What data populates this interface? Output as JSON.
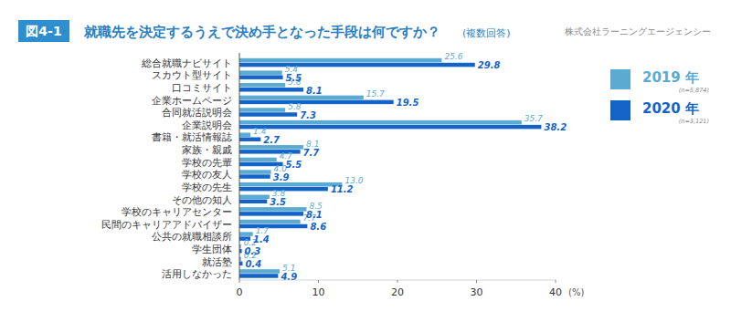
{
  "chart_data": {
    "type": "bar",
    "orientation": "horizontal",
    "figure_label": "図4-1",
    "title": "就職先を決定するうえで決め手となった手段は何ですか？",
    "subtitle": "(複数回答)",
    "source": "株式会社ラーニングエージェンシー",
    "x_label": "(%)",
    "categories": [
      "総合就職ナビサイト",
      "スカウト型サイト",
      "口コミサイト",
      "企業ホームページ",
      "合同就活説明会",
      "企業説明会",
      "書籍・就活情報誌",
      "家族・親戚",
      "学校の先輩",
      "学校の友人",
      "学校の先生",
      "その他の知人",
      "学校のキャリアセンター",
      "民間のキャリアアドバイザー",
      "公共の就職相談所",
      "学生団体",
      "就活塾",
      "活用しなかった"
    ],
    "series": [
      {
        "name": "2019 年",
        "sample_label": "(n=5,874)",
        "color": "#5aaad2",
        "values": [
          25.6,
          5.4,
          5.8,
          15.7,
          5.8,
          35.7,
          1.4,
          8.1,
          4.7,
          4.0,
          13.0,
          3.8,
          8.5,
          7.7,
          1.7,
          0.2,
          0.2,
          5.1
        ],
        "value_labels": [
          "25.6",
          "5.4",
          "5.8",
          "15.7",
          "5.8",
          "35.7",
          "1.4",
          "8.1",
          "4.7",
          "4.0",
          "13.0",
          "3.8",
          "8.5",
          "7.7",
          "1.7",
          "0.2",
          "0.2",
          "5.1"
        ]
      },
      {
        "name": "2020 年",
        "sample_label": "(n=3,121)",
        "color": "#1464c8",
        "values": [
          29.8,
          5.5,
          8.1,
          19.5,
          7.3,
          38.2,
          2.7,
          7.7,
          5.5,
          3.9,
          11.2,
          3.5,
          8.1,
          8.6,
          1.4,
          0.3,
          0.4,
          4.9
        ],
        "value_labels": [
          "29.8",
          "5.5",
          "8.1",
          "19.5",
          "7.3",
          "38.2",
          "2.7",
          "7.7",
          "5.5",
          "3.9",
          "11.2",
          "3.5",
          "8.1",
          "8.6",
          "1.4",
          "0.3",
          "0.4",
          "4.9"
        ]
      }
    ],
    "xlim": [
      0,
      40
    ],
    "xticks": [
      0,
      10,
      20,
      30,
      40
    ],
    "grid": false,
    "data_labels": true,
    "legend": "right"
  }
}
